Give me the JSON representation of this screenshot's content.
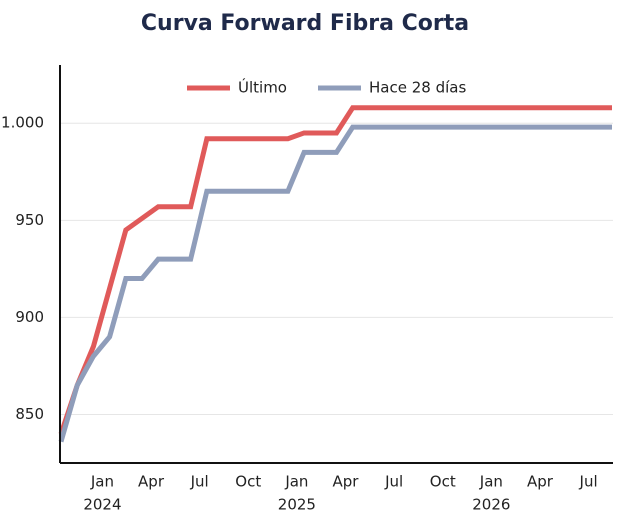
{
  "chart_data": {
    "type": "line",
    "title": "Curva Forward Fibra Corta",
    "x": [
      "2023-11",
      "2023-12",
      "2024-01",
      "2024-02",
      "2024-03",
      "2024-04",
      "2024-05",
      "2024-06",
      "2024-07",
      "2024-08",
      "2024-09",
      "2024-10",
      "2024-11",
      "2024-12",
      "2025-01",
      "2025-02",
      "2025-03",
      "2025-04",
      "2025-05",
      "2025-06",
      "2025-07",
      "2025-08",
      "2025-09",
      "2025-10",
      "2025-11",
      "2025-12",
      "2026-01",
      "2026-02",
      "2026-03",
      "2026-04",
      "2026-05",
      "2026-06",
      "2026-07",
      "2026-08",
      "2026-09"
    ],
    "series": [
      {
        "name": "Último",
        "color": "#e05a5a",
        "values": [
          840,
          865,
          885,
          915,
          945,
          951,
          957,
          957,
          957,
          992,
          992,
          992,
          992,
          992,
          992,
          995,
          995,
          995,
          1008,
          1008,
          1008,
          1008,
          1008,
          1008,
          1008,
          1008,
          1008,
          1008,
          1008,
          1008,
          1008,
          1008,
          1008,
          1008,
          1008
        ]
      },
      {
        "name": "Hace 28 días",
        "color": "#8f9dba",
        "values": [
          836,
          865,
          880,
          890,
          920,
          920,
          930,
          930,
          930,
          965,
          965,
          965,
          965,
          965,
          965,
          985,
          985,
          985,
          998,
          998,
          998,
          998,
          998,
          998,
          998,
          998,
          998,
          998,
          998,
          998,
          998,
          998,
          998,
          998,
          998
        ]
      }
    ],
    "xlim": [
      "2023-11",
      "2026-09"
    ],
    "xticks": [
      {
        "value": "2024-01",
        "label": "Jan"
      },
      {
        "value": "2024-04",
        "label": "Apr"
      },
      {
        "value": "2024-07",
        "label": "Jul"
      },
      {
        "value": "2024-10",
        "label": "Oct"
      },
      {
        "value": "2025-01",
        "label": "Jan"
      },
      {
        "value": "2025-04",
        "label": "Apr"
      },
      {
        "value": "2025-07",
        "label": "Jul"
      },
      {
        "value": "2025-10",
        "label": "Oct"
      },
      {
        "value": "2026-01",
        "label": "Jan"
      },
      {
        "value": "2026-04",
        "label": "Apr"
      },
      {
        "value": "2026-07",
        "label": "Jul"
      }
    ],
    "xtick_years": [
      {
        "value": "2024-01",
        "label": "2024"
      },
      {
        "value": "2025-01",
        "label": "2025"
      },
      {
        "value": "2026-01",
        "label": "2026"
      }
    ],
    "ylim": [
      825,
      1030
    ],
    "yticks": [
      850,
      900,
      950,
      {
        "value": 1000,
        "label": "1.000"
      }
    ],
    "grid": true,
    "legend": "top"
  }
}
